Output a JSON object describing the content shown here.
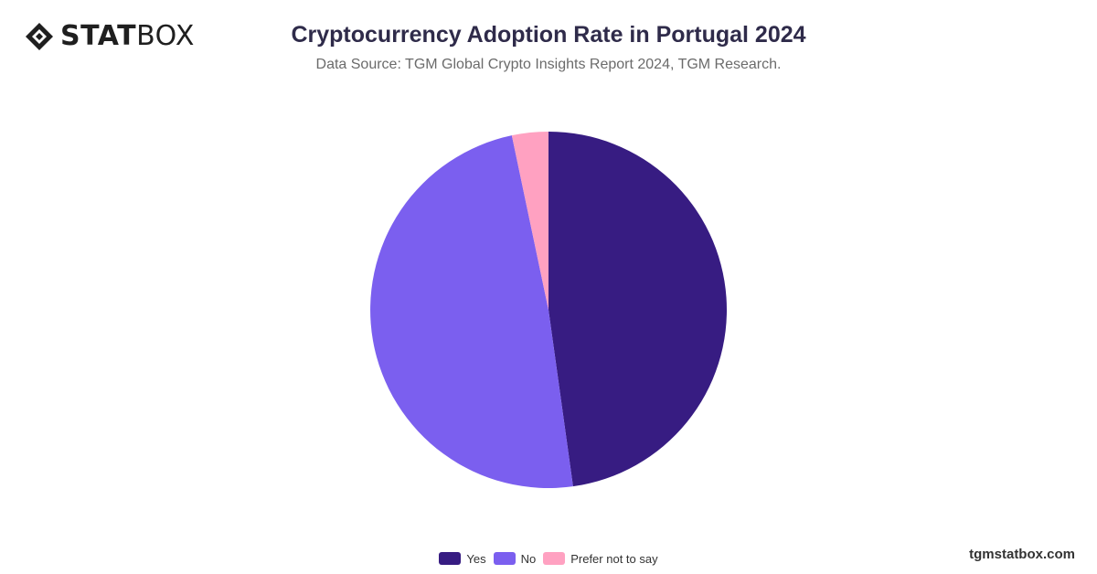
{
  "brand": {
    "logo_bold": "STAT",
    "logo_light": "BOX"
  },
  "header": {
    "title": "Cryptocurrency Adoption Rate in Portugal 2024",
    "subtitle": "Data Source: TGM Global Crypto Insights Report 2024, TGM Research."
  },
  "footer": {
    "watermark": "tgmstatbox.com"
  },
  "chart_data": {
    "type": "pie",
    "title": "Cryptocurrency Adoption Rate in Portugal 2024",
    "subtitle": "Data Source: TGM Global Crypto Insights Report 2024, TGM Research.",
    "categories": [
      "Yes",
      "No",
      "Prefer not to say"
    ],
    "values": [
      47.8,
      48.9,
      3.3
    ],
    "colors": [
      "#371c82",
      "#7b5fef",
      "#ffa1c1"
    ],
    "start_angle_deg": 0,
    "direction": "clockwise",
    "legend_position": "bottom-center"
  }
}
